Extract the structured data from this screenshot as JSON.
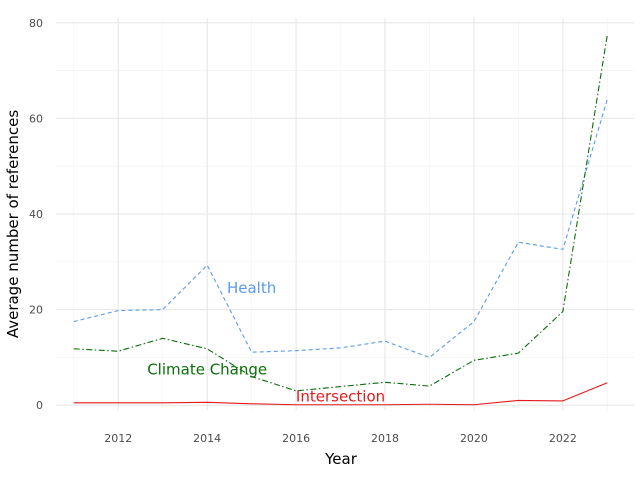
{
  "chart_data": {
    "type": "line",
    "xlabel": "Year",
    "ylabel": "Average number of references",
    "xlim": [
      2010.6,
      2023.6
    ],
    "ylim": [
      -1,
      81
    ],
    "x_ticks": [
      2012,
      2014,
      2016,
      2018,
      2020,
      2022
    ],
    "y_ticks": [
      0,
      20,
      40,
      60,
      80
    ],
    "grid": true,
    "legend": "none",
    "x": [
      2011,
      2012,
      2013,
      2014,
      2015,
      2016,
      2017,
      2018,
      2019,
      2020,
      2021,
      2022,
      2023
    ],
    "series": [
      {
        "name": "Health",
        "color": "#5a9bea",
        "dash": "dashed",
        "values": [
          17.5,
          19.8,
          20.0,
          29.3,
          11.1,
          11.4,
          12.0,
          13.4,
          10.0,
          17.5,
          34.1,
          32.6,
          64.0
        ],
        "label_at": [
          2015.0,
          24.5
        ]
      },
      {
        "name": "Climate Change",
        "color": "#0a6e0a",
        "dash": "dashdot",
        "values": [
          11.8,
          11.3,
          14.0,
          11.8,
          6.0,
          3.0,
          3.9,
          4.8,
          4.0,
          9.4,
          10.9,
          19.6,
          77.5
        ],
        "label_at": [
          2014.0,
          7.5
        ]
      },
      {
        "name": "Intersection",
        "color": "#e31a1c",
        "dash": "solid",
        "values": [
          0.5,
          0.5,
          0.5,
          0.6,
          0.3,
          0.1,
          0.1,
          0.1,
          0.2,
          0.1,
          1.0,
          0.9,
          4.7
        ],
        "label_at": [
          2017.0,
          1.8
        ]
      }
    ]
  }
}
